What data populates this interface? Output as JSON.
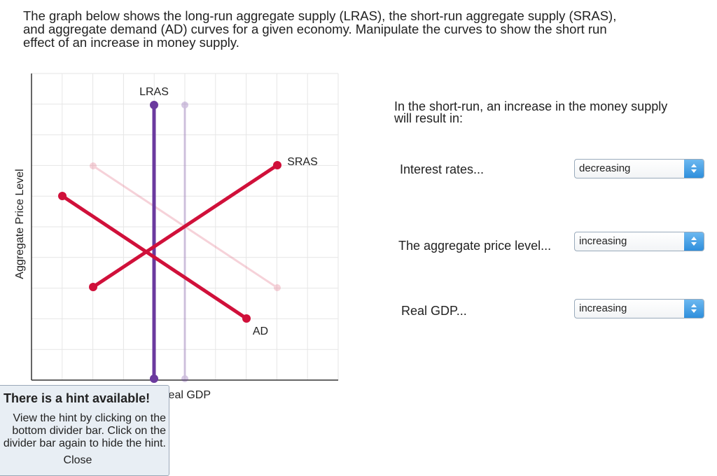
{
  "instruction": {
    "lines": [
      "The graph below shows the long-run aggregate supply (LRAS), the short-run aggregate supply (SRAS),",
      "and aggregate demand (AD) curves for a given economy. Manipulate the curves to show the short run",
      "effect of an increase in money supply."
    ]
  },
  "graph": {
    "lras_label": "LRAS",
    "sras_label": "SRAS",
    "ad_label": "AD",
    "y_axis_label": "Aggregate Price Level",
    "x_axis_label": "Real GDP"
  },
  "question": {
    "prompt_lines": [
      "In the short-run, an increase in the money supply",
      "will result in:"
    ],
    "items": [
      {
        "label": "Interest rates...",
        "answer": "decreasing"
      },
      {
        "label": "The aggregate price level...",
        "answer": "increasing"
      },
      {
        "label": "Real GDP...",
        "answer": "increasing"
      }
    ]
  },
  "hint": {
    "title": "There is a hint available!",
    "lines": [
      "View the hint by clicking on the",
      "bottom divider bar. Click on the",
      "divider bar again to hide the hint."
    ],
    "close": "Close"
  }
}
